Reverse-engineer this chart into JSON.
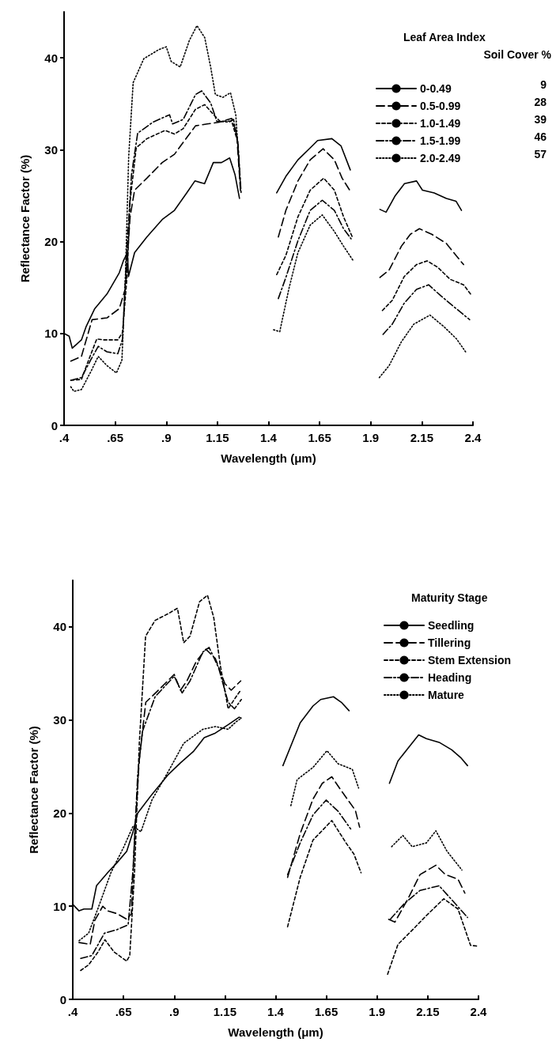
{
  "chart_data": [
    {
      "type": "line",
      "xlabel": "Wavelength (μm)",
      "ylabel": "Reflectance Factor (%)",
      "legend_title": "Leaf Area Index",
      "legend": "top right",
      "annotations": [
        "Soil Cover %",
        "9",
        "28",
        "39",
        "46",
        "57"
      ],
      "xlim": [
        0.4,
        2.4
      ],
      "ylim": [
        0,
        45
      ],
      "xticks": [
        {
          "value": 0.4,
          "label": ".4"
        },
        {
          "value": 0.65,
          "label": ".65"
        },
        {
          "value": 0.9,
          "label": ".9"
        },
        1.15,
        1.4,
        1.65,
        1.9,
        2.15,
        2.4
      ],
      "yticks": [
        0,
        10,
        20,
        30,
        40
      ],
      "grid": false,
      "marker": "none",
      "series": [
        {
          "name": "0-0.49",
          "color": "#000000",
          "line_style": "solid",
          "x": [
            0.4,
            0.425,
            0.44,
            0.485,
            0.507,
            0.55,
            0.61,
            0.67,
            0.69,
            0.71,
            0.715,
            0.745,
            0.805,
            0.88,
            0.94,
            1.0,
            1.04,
            1.087,
            1.13,
            1.17,
            1.21,
            1.236,
            1.258,
            1.33,
            1.44,
            1.485,
            1.544,
            1.604,
            1.64,
            1.71,
            1.755,
            1.8,
            1.87,
            1.945,
            1.975,
            2.02,
            2.065,
            2.124,
            2.153,
            2.21,
            2.27,
            2.317,
            2.344
          ],
          "values": [
            10.0,
            9.7,
            8.4,
            9.3,
            10.7,
            12.7,
            14.3,
            16.6,
            17.9,
            18.8,
            16.2,
            18.8,
            20.5,
            22.4,
            23.4,
            25.3,
            26.6,
            26.3,
            28.6,
            28.6,
            29.1,
            27.3,
            24.7,
            null,
            25.3,
            27.1,
            28.9,
            30.2,
            31.0,
            31.2,
            30.4,
            27.8,
            null,
            23.5,
            23.2,
            25.0,
            26.3,
            26.6,
            25.6,
            25.3,
            24.7,
            24.4,
            23.4
          ]
        },
        {
          "name": "0.5-0.99",
          "color": "#000000",
          "line_style": "dashed",
          "x": [
            0.433,
            0.485,
            0.537,
            0.61,
            0.67,
            0.7,
            0.723,
            0.745,
            0.805,
            0.88,
            0.94,
            0.983,
            1.043,
            1.1,
            1.16,
            1.22,
            1.244,
            1.263,
            1.33,
            1.448,
            1.485,
            1.544,
            1.604,
            1.667,
            1.722,
            1.76,
            1.797,
            1.87,
            1.945,
            1.99,
            2.05,
            2.094,
            2.138,
            2.198,
            2.27,
            2.317,
            2.354
          ],
          "values": [
            7.0,
            7.5,
            11.5,
            11.7,
            12.7,
            14.9,
            22.7,
            25.6,
            26.9,
            28.6,
            29.5,
            30.8,
            32.6,
            32.8,
            33.0,
            33.4,
            31.8,
            25.5,
            null,
            20.5,
            23.4,
            26.6,
            28.9,
            30.1,
            28.9,
            26.9,
            25.6,
            null,
            16.1,
            16.9,
            19.5,
            20.8,
            21.4,
            20.8,
            19.8,
            18.5,
            17.5
          ]
        },
        {
          "name": "1.0-1.49",
          "color": "#000000",
          "line_style": "shortdash",
          "x": [
            0.433,
            0.485,
            0.52,
            0.56,
            0.596,
            0.663,
            0.686,
            0.708,
            0.723,
            0.753,
            0.805,
            0.894,
            0.94,
            0.983,
            1.043,
            1.088,
            1.132,
            1.162,
            1.22,
            1.25,
            1.263,
            1.33,
            1.44,
            1.485,
            1.544,
            1.604,
            1.67,
            1.722,
            1.767,
            1.81,
            1.87,
            1.957,
            2.005,
            2.064,
            2.124,
            2.176,
            2.228,
            2.288,
            2.354,
            2.388
          ],
          "values": [
            4.9,
            5.0,
            7.1,
            9.4,
            9.3,
            9.3,
            10.1,
            16.2,
            24.4,
            30.2,
            31.2,
            32.1,
            31.7,
            32.3,
            34.4,
            34.9,
            33.8,
            33.1,
            33.1,
            30.8,
            26.0,
            null,
            16.4,
            18.5,
            22.7,
            25.6,
            26.9,
            25.6,
            22.7,
            20.5,
            null,
            12.5,
            13.6,
            16.2,
            17.5,
            17.9,
            17.2,
            15.9,
            15.3,
            14.3
          ]
        },
        {
          "name": "1.5-1.99",
          "color": "#000000",
          "line_style": "dashdot",
          "x": [
            0.433,
            0.485,
            0.53,
            0.567,
            0.61,
            0.663,
            0.686,
            0.708,
            0.73,
            0.76,
            0.835,
            0.916,
            0.931,
            0.983,
            1.043,
            1.073,
            1.117,
            1.147,
            1.207,
            1.229,
            1.25,
            1.266,
            1.33,
            1.448,
            1.485,
            1.544,
            1.604,
            1.663,
            1.722,
            1.767,
            1.804,
            1.87,
            1.96,
            2.005,
            2.064,
            2.124,
            2.183,
            2.243,
            2.302,
            2.384
          ],
          "values": [
            4.9,
            5.2,
            7.1,
            8.6,
            8.0,
            7.8,
            9.4,
            19.5,
            27.3,
            31.8,
            33.0,
            33.8,
            32.8,
            33.3,
            36.0,
            36.4,
            35.1,
            33.1,
            33.0,
            33.3,
            30.8,
            25.3,
            null,
            13.8,
            16.1,
            20.1,
            23.4,
            24.5,
            23.4,
            21.4,
            20.3,
            null,
            9.9,
            11.0,
            13.3,
            14.8,
            15.3,
            14.1,
            13.0,
            11.5
          ]
        },
        {
          "name": "2.0-2.49",
          "color": "#000000",
          "line_style": "dotted",
          "x": [
            0.433,
            0.448,
            0.485,
            0.53,
            0.567,
            0.61,
            0.656,
            0.683,
            0.7,
            0.716,
            0.738,
            0.79,
            0.864,
            0.9,
            0.924,
            0.968,
            1.013,
            1.05,
            1.088,
            1.117,
            1.14,
            1.177,
            1.214,
            1.24,
            1.259,
            1.33,
            1.425,
            1.455,
            1.5,
            1.544,
            1.604,
            1.663,
            1.722,
            1.767,
            1.812,
            1.87,
            1.942,
            1.99,
            2.05,
            2.11,
            2.19,
            2.26,
            2.32,
            2.364
          ],
          "values": [
            4.2,
            3.7,
            3.9,
            5.8,
            7.5,
            6.5,
            5.7,
            7.1,
            16.2,
            29.2,
            37.3,
            39.9,
            40.9,
            41.2,
            39.6,
            39.0,
            41.9,
            43.5,
            42.2,
            39.0,
            36.0,
            35.7,
            36.2,
            33.8,
            27.3,
            null,
            10.4,
            10.2,
            14.9,
            18.8,
            21.8,
            22.9,
            21.1,
            19.5,
            18.0,
            null,
            5.2,
            6.5,
            9.1,
            11.0,
            12.0,
            10.7,
            9.4,
            8.0
          ]
        }
      ]
    },
    {
      "type": "line",
      "xlabel": "Wavelength (μm)",
      "ylabel": "Reflectance Factor (%)",
      "legend_title": "Maturity Stage",
      "legend": "top right",
      "xlim": [
        0.4,
        2.4
      ],
      "ylim": [
        0,
        45
      ],
      "xticks": [
        {
          "value": 0.4,
          "label": ".4"
        },
        {
          "value": 0.65,
          "label": ".65"
        },
        {
          "value": 0.9,
          "label": ".9"
        },
        1.15,
        1.4,
        1.65,
        1.9,
        2.15,
        2.4
      ],
      "yticks": [
        0,
        10,
        20,
        30,
        40
      ],
      "grid": false,
      "marker": "none",
      "series": [
        {
          "name": "Seedling",
          "color": "#000000",
          "line_style": "solid",
          "x": [
            0.4,
            0.431,
            0.455,
            0.494,
            0.517,
            0.572,
            0.619,
            0.666,
            0.697,
            0.72,
            0.79,
            0.869,
            0.931,
            0.994,
            1.048,
            1.103,
            1.166,
            1.22,
            1.23,
            1.33,
            1.436,
            1.521,
            1.584,
            1.622,
            1.685,
            1.724,
            1.762,
            1.87,
            1.961,
            2.003,
            2.05,
            2.105,
            2.143,
            2.206,
            2.268,
            2.315,
            2.346
          ],
          "values": [
            10.2,
            9.5,
            9.7,
            9.7,
            12.2,
            13.6,
            14.7,
            15.9,
            18.0,
            20.0,
            22.0,
            24.1,
            25.4,
            26.6,
            28.1,
            28.6,
            29.5,
            30.3,
            30.2,
            null,
            25.1,
            29.7,
            31.5,
            32.2,
            32.5,
            31.9,
            31.0,
            null,
            23.2,
            25.6,
            26.9,
            28.4,
            28.0,
            27.6,
            26.8,
            25.9,
            25.1
          ]
        },
        {
          "name": "Tillering",
          "color": "#000000",
          "line_style": "dashed",
          "x": [
            0.431,
            0.486,
            0.509,
            0.548,
            0.572,
            0.619,
            0.666,
            0.689,
            0.705,
            0.728,
            0.76,
            0.822,
            0.9,
            0.931,
            0.963,
            1.009,
            1.056,
            1.103,
            1.15,
            1.181,
            1.228,
            1.33,
            1.459,
            1.521,
            1.584,
            1.63,
            1.677,
            1.724,
            1.793,
            1.814,
            1.87,
            1.957,
            1.988,
            2.05,
            2.112,
            2.19,
            2.237,
            2.299,
            2.333
          ],
          "values": [
            6.1,
            5.9,
            8.5,
            10.0,
            9.5,
            9.2,
            8.6,
            9.2,
            17.3,
            25.8,
            31.9,
            33.2,
            34.9,
            33.2,
            34.2,
            36.3,
            37.6,
            36.6,
            33.9,
            33.2,
            34.2,
            null,
            13.1,
            17.8,
            21.5,
            23.2,
            23.9,
            22.4,
            20.3,
            18.5,
            null,
            8.6,
            8.3,
            10.7,
            13.4,
            14.4,
            13.4,
            12.9,
            11.4
          ]
        },
        {
          "name": "Stem Extension",
          "color": "#000000",
          "line_style": "shortdash",
          "x": [
            0.439,
            0.478,
            0.525,
            0.559,
            0.603,
            0.666,
            0.681,
            0.705,
            0.728,
            0.759,
            0.806,
            0.869,
            0.916,
            0.947,
            0.978,
            1.025,
            1.064,
            1.095,
            1.127,
            1.166,
            1.205,
            1.228,
            1.33,
            1.459,
            1.521,
            1.584,
            1.677,
            1.747,
            1.786,
            1.821,
            1.87,
            1.952,
            2.003,
            2.081,
            2.143,
            2.229,
            2.299,
            2.361,
            2.4
          ],
          "values": [
            3.1,
            3.7,
            5.1,
            6.4,
            5.1,
            4.1,
            4.7,
            13.9,
            27.5,
            39.0,
            40.7,
            41.4,
            42.0,
            38.3,
            39.0,
            42.7,
            43.4,
            41.0,
            35.9,
            31.2,
            32.5,
            33.2,
            null,
            7.8,
            13.1,
            17.1,
            19.2,
            16.8,
            15.6,
            13.6,
            null,
            2.7,
            5.9,
            7.6,
            9.0,
            10.8,
            9.7,
            5.8,
            5.7
          ]
        },
        {
          "name": "Heading",
          "color": "#000000",
          "line_style": "dashdot",
          "x": [
            0.439,
            0.494,
            0.556,
            0.619,
            0.673,
            0.697,
            0.72,
            0.744,
            0.806,
            0.9,
            0.939,
            0.978,
            1.041,
            1.072,
            1.119,
            1.166,
            1.197,
            1.231,
            1.33,
            1.459,
            1.521,
            1.584,
            1.649,
            1.708,
            1.77,
            1.87,
            1.965,
            2.035,
            2.112,
            2.206,
            2.268,
            2.346
          ],
          "values": [
            4.4,
            4.7,
            7.1,
            7.5,
            8.0,
            13.9,
            24.1,
            28.8,
            32.5,
            34.7,
            32.9,
            34.2,
            37.3,
            37.8,
            35.6,
            31.9,
            31.2,
            32.2,
            null,
            13.4,
            16.8,
            19.8,
            21.4,
            20.2,
            18.3,
            null,
            8.6,
            10.3,
            11.7,
            12.2,
            10.7,
            8.8
          ]
        },
        {
          "name": "Mature",
          "color": "#000000",
          "line_style": "dotted",
          "x": [
            0.431,
            0.478,
            0.525,
            0.588,
            0.65,
            0.697,
            0.736,
            0.79,
            0.869,
            0.947,
            1.041,
            1.103,
            1.166,
            1.205,
            1.231,
            1.33,
            1.475,
            1.506,
            1.584,
            1.653,
            1.708,
            1.778,
            1.809,
            1.87,
            1.972,
            2.027,
            2.073,
            2.143,
            2.19,
            2.245,
            2.318
          ],
          "values": [
            6.3,
            7.1,
            9.8,
            13.6,
            16.3,
            18.6,
            18.0,
            21.4,
            24.4,
            27.5,
            29.0,
            29.3,
            29.0,
            29.8,
            30.2,
            null,
            20.8,
            23.6,
            24.9,
            26.7,
            25.3,
            24.7,
            22.7,
            null,
            16.4,
            17.6,
            16.4,
            16.8,
            18.1,
            15.9,
            13.9
          ]
        }
      ]
    }
  ]
}
